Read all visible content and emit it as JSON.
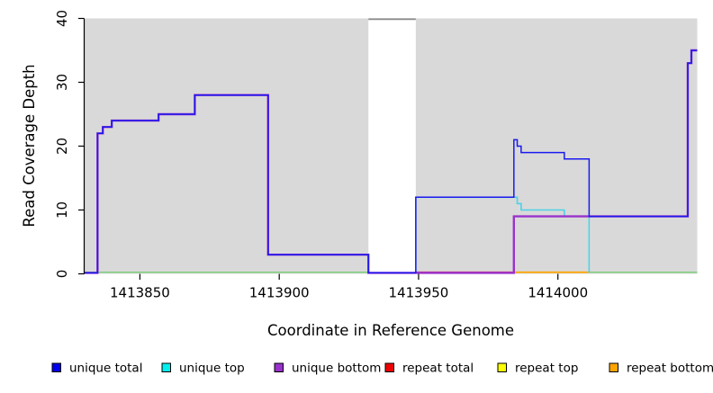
{
  "chart_data": {
    "type": "line",
    "subtype": "step-coverage",
    "title": "",
    "xlabel": "Coordinate in Reference Genome",
    "ylabel": "Read Coverage Depth",
    "xlim": [
      1413830,
      1414050
    ],
    "ylim": [
      0,
      40
    ],
    "x_ticks": [
      1413850,
      1413900,
      1413950,
      1414000
    ],
    "y_ticks": [
      0,
      10,
      20,
      30,
      40
    ],
    "grid": false,
    "panel_bg": "#D9D9D9",
    "masked_region": {
      "x_start": 1413932,
      "x_end": 1413949,
      "fill": "#FFFFFF",
      "top_edge_color": "#8A8A8A"
    },
    "series": [
      {
        "name": "baseline-green",
        "label": null,
        "color": "#7CCD7C",
        "width": 1.5,
        "segments": [
          [
            [
              1413830,
              0.25
            ],
            [
              1413932,
              0.25
            ]
          ],
          [
            [
              1414011.2,
              0.25
            ],
            [
              1414050,
              0.25
            ]
          ]
        ]
      },
      {
        "name": "repeat-top",
        "label": "repeat top",
        "color": "#FFFF00",
        "width": 1.5,
        "segments": [
          [
            [
              1413984.2,
              0.25
            ],
            [
              1414011.2,
              0.25
            ]
          ]
        ]
      },
      {
        "name": "repeat-bottom",
        "label": "repeat bottom",
        "color": "#FFA500",
        "width": 1.8,
        "segments": [
          [
            [
              1413984.2,
              0.25
            ],
            [
              1414011.2,
              0.25
            ]
          ]
        ]
      },
      {
        "name": "repeat-total",
        "label": "repeat total",
        "color": "#E23B52",
        "width": 1.6,
        "segments": [
          [
            [
              1413949,
              0.25
            ],
            [
              1413984.2,
              0.25
            ]
          ]
        ]
      },
      {
        "name": "unique-top",
        "label": "unique top",
        "color": "#4DD2E6",
        "width": 1.6,
        "segments": [
          [
            [
              1413932,
              0
            ],
            [
              1413949,
              12
            ],
            [
              1413985.4,
              11
            ],
            [
              1413986.8,
              10
            ],
            [
              1414002.3,
              9
            ],
            [
              1414011.2,
              0
            ]
          ]
        ]
      },
      {
        "name": "unique-bottom",
        "label": "unique bottom",
        "color": "#9932CC",
        "width": 2.4,
        "segments": [
          [
            [
              1413830,
              0
            ],
            [
              1413834.8,
              22
            ],
            [
              1413836.7,
              23
            ],
            [
              1413839.9,
              24
            ],
            [
              1413856.7,
              25
            ],
            [
              1413869.7,
              28
            ],
            [
              1413896,
              3
            ],
            [
              1413932,
              0
            ],
            [
              1413984.2,
              9
            ],
            [
              1414046.6,
              33
            ],
            [
              1414047.9,
              35
            ],
            [
              1414050,
              35
            ]
          ]
        ]
      },
      {
        "name": "unique-total",
        "label": "unique total",
        "color": "#1A1AEE",
        "width": 1.5,
        "segments": [
          [
            [
              1413830,
              0
            ],
            [
              1413834.8,
              22
            ],
            [
              1413836.7,
              23
            ],
            [
              1413839.9,
              24
            ],
            [
              1413856.7,
              25
            ],
            [
              1413869.7,
              28
            ],
            [
              1413896,
              3
            ],
            [
              1413932,
              0
            ],
            [
              1413949,
              12
            ],
            [
              1413984.2,
              21
            ],
            [
              1413985.4,
              20
            ],
            [
              1413986.8,
              19
            ],
            [
              1414002.3,
              18
            ],
            [
              1414011.2,
              9
            ],
            [
              1414046.6,
              33
            ],
            [
              1414047.9,
              35
            ],
            [
              1414050,
              35
            ]
          ]
        ]
      }
    ],
    "legend": [
      {
        "label": "unique total",
        "color": "#0000EE"
      },
      {
        "label": "unique top",
        "color": "#00EEEE"
      },
      {
        "label": "unique bottom",
        "color": "#9932CC"
      },
      {
        "label": "repeat total",
        "color": "#EE0000"
      },
      {
        "label": "repeat top",
        "color": "#FFFF00"
      },
      {
        "label": "repeat bottom",
        "color": "#FFA500"
      }
    ],
    "legend_position": "bottom"
  }
}
